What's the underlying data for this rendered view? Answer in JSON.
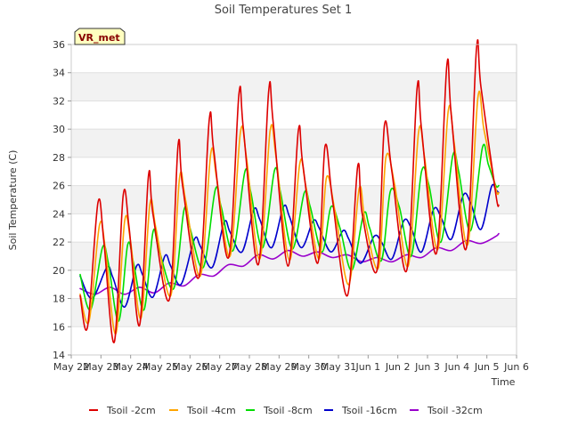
{
  "chart_data": {
    "type": "line",
    "title": "Soil Temperatures Set 1",
    "xlabel": "Time",
    "ylabel": "Soil Temperature (C)",
    "station_badge": "VR_met",
    "xlim": [
      0,
      15
    ],
    "ylim": [
      14,
      36
    ],
    "x_ticks": [
      {
        "x": 0,
        "label": "May 22"
      },
      {
        "x": 1,
        "label": "May 23"
      },
      {
        "x": 2,
        "label": "May 24"
      },
      {
        "x": 3,
        "label": "May 25"
      },
      {
        "x": 4,
        "label": "May 26"
      },
      {
        "x": 5,
        "label": "May 27"
      },
      {
        "x": 6,
        "label": "May 28"
      },
      {
        "x": 7,
        "label": "May 29"
      },
      {
        "x": 8,
        "label": "May 30"
      },
      {
        "x": 9,
        "label": "May 31"
      },
      {
        "x": 10,
        "label": "Jun 1"
      },
      {
        "x": 11,
        "label": "Jun 2"
      },
      {
        "x": 12,
        "label": "Jun 3"
      },
      {
        "x": 13,
        "label": "Jun 4"
      },
      {
        "x": 14,
        "label": "Jun 5"
      },
      {
        "x": 15,
        "label": "Jun 6"
      }
    ],
    "y_ticks": [
      14,
      16,
      18,
      20,
      22,
      24,
      26,
      28,
      30,
      32,
      34,
      36
    ],
    "grid": true,
    "legend_position": "bottom",
    "series": [
      {
        "name": "Tsoil -2cm",
        "color": "#dd0000",
        "x": [
          0.3,
          0.55,
          0.9,
          1.1,
          1.45,
          1.75,
          1.95,
          2.3,
          2.6,
          2.75,
          3.3,
          3.6,
          3.75,
          4.3,
          4.65,
          4.8,
          5.3,
          5.65,
          5.8,
          6.3,
          6.65,
          6.8,
          7.3,
          7.65,
          7.8,
          8.3,
          8.55,
          8.8,
          9.3,
          9.65,
          9.8,
          10.3,
          10.55,
          10.8,
          11.3,
          11.65,
          11.8,
          12.3,
          12.65,
          12.8,
          13.3,
          13.65,
          13.8,
          14.3,
          14.4
        ],
        "y": [
          18.2,
          16.0,
          24.8,
          22.0,
          14.9,
          25.3,
          23.0,
          16.1,
          26.7,
          24.0,
          17.9,
          28.9,
          26.0,
          19.5,
          30.7,
          28.5,
          20.9,
          32.5,
          30.0,
          20.4,
          32.7,
          30.5,
          20.3,
          29.9,
          27.5,
          20.5,
          28.8,
          25.0,
          18.2,
          27.4,
          24.0,
          20.0,
          30.3,
          27.0,
          20.0,
          32.9,
          30.0,
          21.2,
          34.5,
          31.0,
          21.5,
          35.7,
          33.0,
          25.4,
          24.6
        ]
      },
      {
        "name": "Tsoil -4cm",
        "color": "#ffa500",
        "x": [
          0.3,
          0.6,
          0.95,
          1.15,
          1.5,
          1.8,
          2.0,
          2.35,
          2.65,
          2.85,
          3.35,
          3.65,
          3.85,
          4.35,
          4.7,
          4.9,
          5.35,
          5.7,
          5.9,
          6.35,
          6.7,
          6.9,
          7.35,
          7.7,
          7.9,
          8.35,
          8.6,
          8.9,
          9.35,
          9.7,
          9.9,
          10.35,
          10.6,
          10.9,
          11.35,
          11.7,
          11.9,
          12.35,
          12.7,
          12.9,
          13.35,
          13.7,
          13.9,
          14.3,
          14.4
        ],
        "y": [
          18.3,
          16.4,
          23.2,
          21.5,
          15.5,
          23.5,
          22.0,
          16.6,
          24.7,
          23.0,
          18.2,
          26.6,
          25.0,
          19.6,
          28.3,
          26.5,
          21.0,
          29.8,
          28.0,
          20.8,
          29.9,
          28.0,
          20.7,
          27.6,
          26.0,
          20.8,
          26.6,
          24.0,
          19.0,
          25.8,
          23.5,
          20.2,
          28.0,
          26.0,
          20.3,
          29.8,
          28.0,
          21.5,
          31.3,
          29.0,
          21.8,
          32.3,
          30.0,
          25.8,
          25.5
        ]
      },
      {
        "name": "Tsoil -8cm",
        "color": "#00dd00",
        "x": [
          0.3,
          0.65,
          1.05,
          1.25,
          1.6,
          1.9,
          2.1,
          2.45,
          2.75,
          2.95,
          3.45,
          3.8,
          4.0,
          4.45,
          4.85,
          5.05,
          5.45,
          5.85,
          6.05,
          6.45,
          6.85,
          7.05,
          7.45,
          7.85,
          8.05,
          8.45,
          8.75,
          9.05,
          9.45,
          9.85,
          10.05,
          10.45,
          10.75,
          11.05,
          11.45,
          11.8,
          12.05,
          12.45,
          12.85,
          13.05,
          13.45,
          13.85,
          14.05,
          14.3,
          14.4
        ],
        "y": [
          19.7,
          17.2,
          21.6,
          20.5,
          16.4,
          21.8,
          20.5,
          17.2,
          22.7,
          21.5,
          18.7,
          24.3,
          23.0,
          20.2,
          25.7,
          24.5,
          21.4,
          27.0,
          25.5,
          21.6,
          27.1,
          25.5,
          21.5,
          25.5,
          24.5,
          21.3,
          24.5,
          23.0,
          20.0,
          24.0,
          23.0,
          20.7,
          25.6,
          24.5,
          21.0,
          27.0,
          26.0,
          22.0,
          28.1,
          27.0,
          22.8,
          28.7,
          27.5,
          26.0,
          26.0
        ]
      },
      {
        "name": "Tsoil -16cm",
        "color": "#0000cc",
        "x": [
          0.3,
          0.7,
          1.2,
          1.4,
          1.8,
          2.2,
          2.4,
          2.75,
          3.15,
          3.35,
          3.7,
          4.15,
          4.35,
          4.75,
          5.15,
          5.35,
          5.75,
          6.15,
          6.35,
          6.75,
          7.15,
          7.35,
          7.75,
          8.15,
          8.35,
          8.75,
          9.15,
          9.35,
          9.75,
          10.2,
          10.45,
          10.8,
          11.2,
          11.45,
          11.8,
          12.2,
          12.45,
          12.8,
          13.2,
          13.45,
          13.8,
          14.15,
          14.3,
          14.4
        ],
        "y": [
          19.6,
          18.0,
          20.2,
          19.5,
          17.4,
          20.3,
          19.7,
          18.1,
          21.0,
          20.3,
          19.0,
          22.2,
          21.7,
          20.2,
          23.4,
          22.7,
          21.3,
          24.3,
          23.6,
          21.6,
          24.5,
          23.8,
          21.6,
          23.5,
          23.0,
          21.3,
          22.8,
          22.2,
          20.5,
          22.4,
          22.0,
          20.8,
          23.5,
          23.0,
          21.3,
          24.3,
          23.8,
          22.2,
          25.3,
          24.8,
          22.9,
          25.9,
          25.7,
          25.5
        ]
      },
      {
        "name": "Tsoil -32cm",
        "color": "#9900cc",
        "x": [
          0.3,
          0.8,
          1.3,
          1.8,
          2.3,
          2.8,
          3.3,
          3.8,
          4.3,
          4.8,
          5.3,
          5.8,
          6.3,
          6.8,
          7.3,
          7.8,
          8.3,
          8.8,
          9.3,
          9.8,
          10.3,
          10.8,
          11.3,
          11.8,
          12.3,
          12.8,
          13.3,
          13.8,
          14.3,
          14.4
        ],
        "y": [
          18.7,
          18.3,
          18.8,
          18.3,
          18.8,
          18.4,
          19.1,
          18.9,
          19.7,
          19.6,
          20.4,
          20.3,
          21.1,
          20.8,
          21.4,
          21.0,
          21.3,
          20.9,
          21.1,
          20.6,
          20.9,
          20.6,
          21.1,
          20.9,
          21.6,
          21.4,
          22.1,
          21.9,
          22.4,
          22.6
        ]
      }
    ]
  }
}
